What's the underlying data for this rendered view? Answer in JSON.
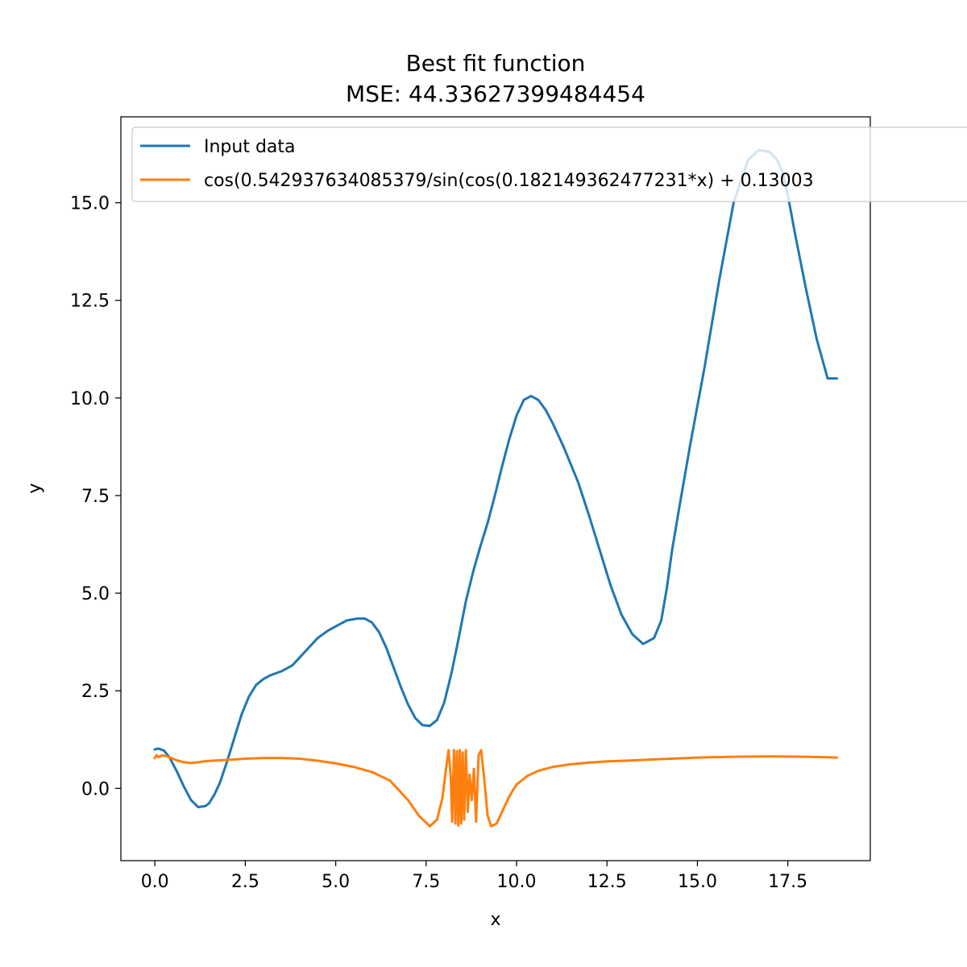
{
  "chart_data": {
    "type": "line",
    "title": "Best fit function",
    "subtitle": "MSE: 44.33627399484454",
    "xlabel": "x",
    "ylabel": "y",
    "xlim": [
      -0.94,
      19.78
    ],
    "ylim": [
      -1.85,
      17.2
    ],
    "xticks": [
      0.0,
      2.5,
      5.0,
      7.5,
      10.0,
      12.5,
      15.0,
      17.5
    ],
    "xtick_labels": [
      "0.0",
      "2.5",
      "5.0",
      "7.5",
      "10.0",
      "12.5",
      "15.0",
      "17.5"
    ],
    "yticks": [
      0.0,
      2.5,
      5.0,
      7.5,
      10.0,
      12.5,
      15.0
    ],
    "ytick_labels": [
      "0.0",
      "2.5",
      "5.0",
      "7.5",
      "10.0",
      "12.5",
      "15.0"
    ],
    "grid": false,
    "legend_position": "top-left",
    "series": [
      {
        "name": "Input data",
        "color": "#1f77b4",
        "x": [
          0.0,
          0.1,
          0.25,
          0.4,
          0.6,
          0.8,
          1.0,
          1.2,
          1.4,
          1.5,
          1.65,
          1.8,
          2.0,
          2.2,
          2.4,
          2.6,
          2.8,
          3.0,
          3.2,
          3.5,
          3.8,
          4.0,
          4.2,
          4.5,
          4.8,
          5.0,
          5.3,
          5.6,
          5.8,
          6.0,
          6.2,
          6.4,
          6.6,
          6.8,
          7.0,
          7.2,
          7.4,
          7.6,
          7.8,
          8.0,
          8.2,
          8.4,
          8.6,
          8.8,
          9.0,
          9.2,
          9.4,
          9.6,
          9.8,
          10.0,
          10.2,
          10.4,
          10.6,
          10.8,
          11.0,
          11.15,
          11.3,
          11.5,
          11.7,
          12.0,
          12.3,
          12.6,
          12.9,
          13.2,
          13.5,
          13.8,
          14.0,
          14.15,
          14.3,
          14.5,
          14.8,
          15.2,
          15.6,
          16.0,
          16.4,
          16.7,
          17.0,
          17.2,
          17.35,
          17.5,
          17.7,
          18.0,
          18.3,
          18.6,
          18.85
        ],
        "y": [
          1.0,
          1.02,
          0.97,
          0.8,
          0.45,
          0.05,
          -0.3,
          -0.48,
          -0.45,
          -0.38,
          -0.15,
          0.15,
          0.7,
          1.3,
          1.9,
          2.35,
          2.65,
          2.8,
          2.9,
          3.0,
          3.15,
          3.35,
          3.55,
          3.85,
          4.05,
          4.15,
          4.3,
          4.35,
          4.35,
          4.25,
          4.0,
          3.6,
          3.1,
          2.6,
          2.15,
          1.8,
          1.62,
          1.6,
          1.75,
          2.2,
          2.95,
          3.85,
          4.8,
          5.55,
          6.2,
          6.8,
          7.5,
          8.25,
          8.95,
          9.55,
          9.95,
          10.05,
          9.95,
          9.7,
          9.35,
          9.05,
          8.75,
          8.3,
          7.85,
          7.0,
          6.1,
          5.2,
          4.45,
          3.95,
          3.7,
          3.85,
          4.3,
          5.1,
          6.1,
          7.2,
          8.8,
          10.8,
          13.0,
          15.0,
          16.1,
          16.35,
          16.3,
          16.1,
          15.8,
          15.2,
          14.2,
          12.8,
          11.5,
          10.5,
          10.5
        ]
      },
      {
        "name": "cos(0.542937634085379/sin(cos(0.182149362477231*x) + 0.13003",
        "color": "#ff7f0e",
        "x": [
          0.0,
          0.05,
          0.1,
          0.2,
          0.4,
          0.6,
          0.8,
          1.0,
          1.2,
          1.4,
          1.6,
          2.0,
          2.5,
          3.0,
          3.5,
          4.0,
          4.5,
          5.0,
          5.5,
          6.0,
          6.5,
          7.0,
          7.3,
          7.6,
          7.8,
          7.95,
          8.05,
          8.12,
          8.18,
          8.22,
          8.27,
          8.31,
          8.35,
          8.39,
          8.43,
          8.47,
          8.51,
          8.55,
          8.6,
          8.65,
          8.7,
          8.76,
          8.82,
          8.88,
          8.95,
          9.02,
          9.1,
          9.2,
          9.3,
          9.45,
          9.6,
          9.8,
          10.0,
          10.3,
          10.6,
          11.0,
          11.5,
          12.0,
          12.5,
          13.0,
          13.5,
          14.0,
          15.0,
          16.0,
          17.0,
          18.0,
          18.85
        ],
        "y": [
          0.78,
          0.85,
          0.8,
          0.85,
          0.8,
          0.72,
          0.67,
          0.65,
          0.67,
          0.7,
          0.71,
          0.73,
          0.76,
          0.78,
          0.78,
          0.76,
          0.71,
          0.64,
          0.55,
          0.42,
          0.2,
          -0.3,
          -0.7,
          -0.97,
          -0.8,
          -0.25,
          0.5,
          0.98,
          0.3,
          -0.85,
          0.98,
          -0.9,
          0.95,
          -0.95,
          0.98,
          -0.9,
          0.92,
          -0.8,
          0.98,
          -0.6,
          0.35,
          -0.3,
          0.5,
          -0.85,
          0.85,
          0.98,
          0.3,
          -0.7,
          -0.97,
          -0.9,
          -0.6,
          -0.2,
          0.1,
          0.32,
          0.45,
          0.55,
          0.62,
          0.66,
          0.69,
          0.71,
          0.73,
          0.75,
          0.79,
          0.81,
          0.82,
          0.81,
          0.79
        ]
      }
    ]
  }
}
